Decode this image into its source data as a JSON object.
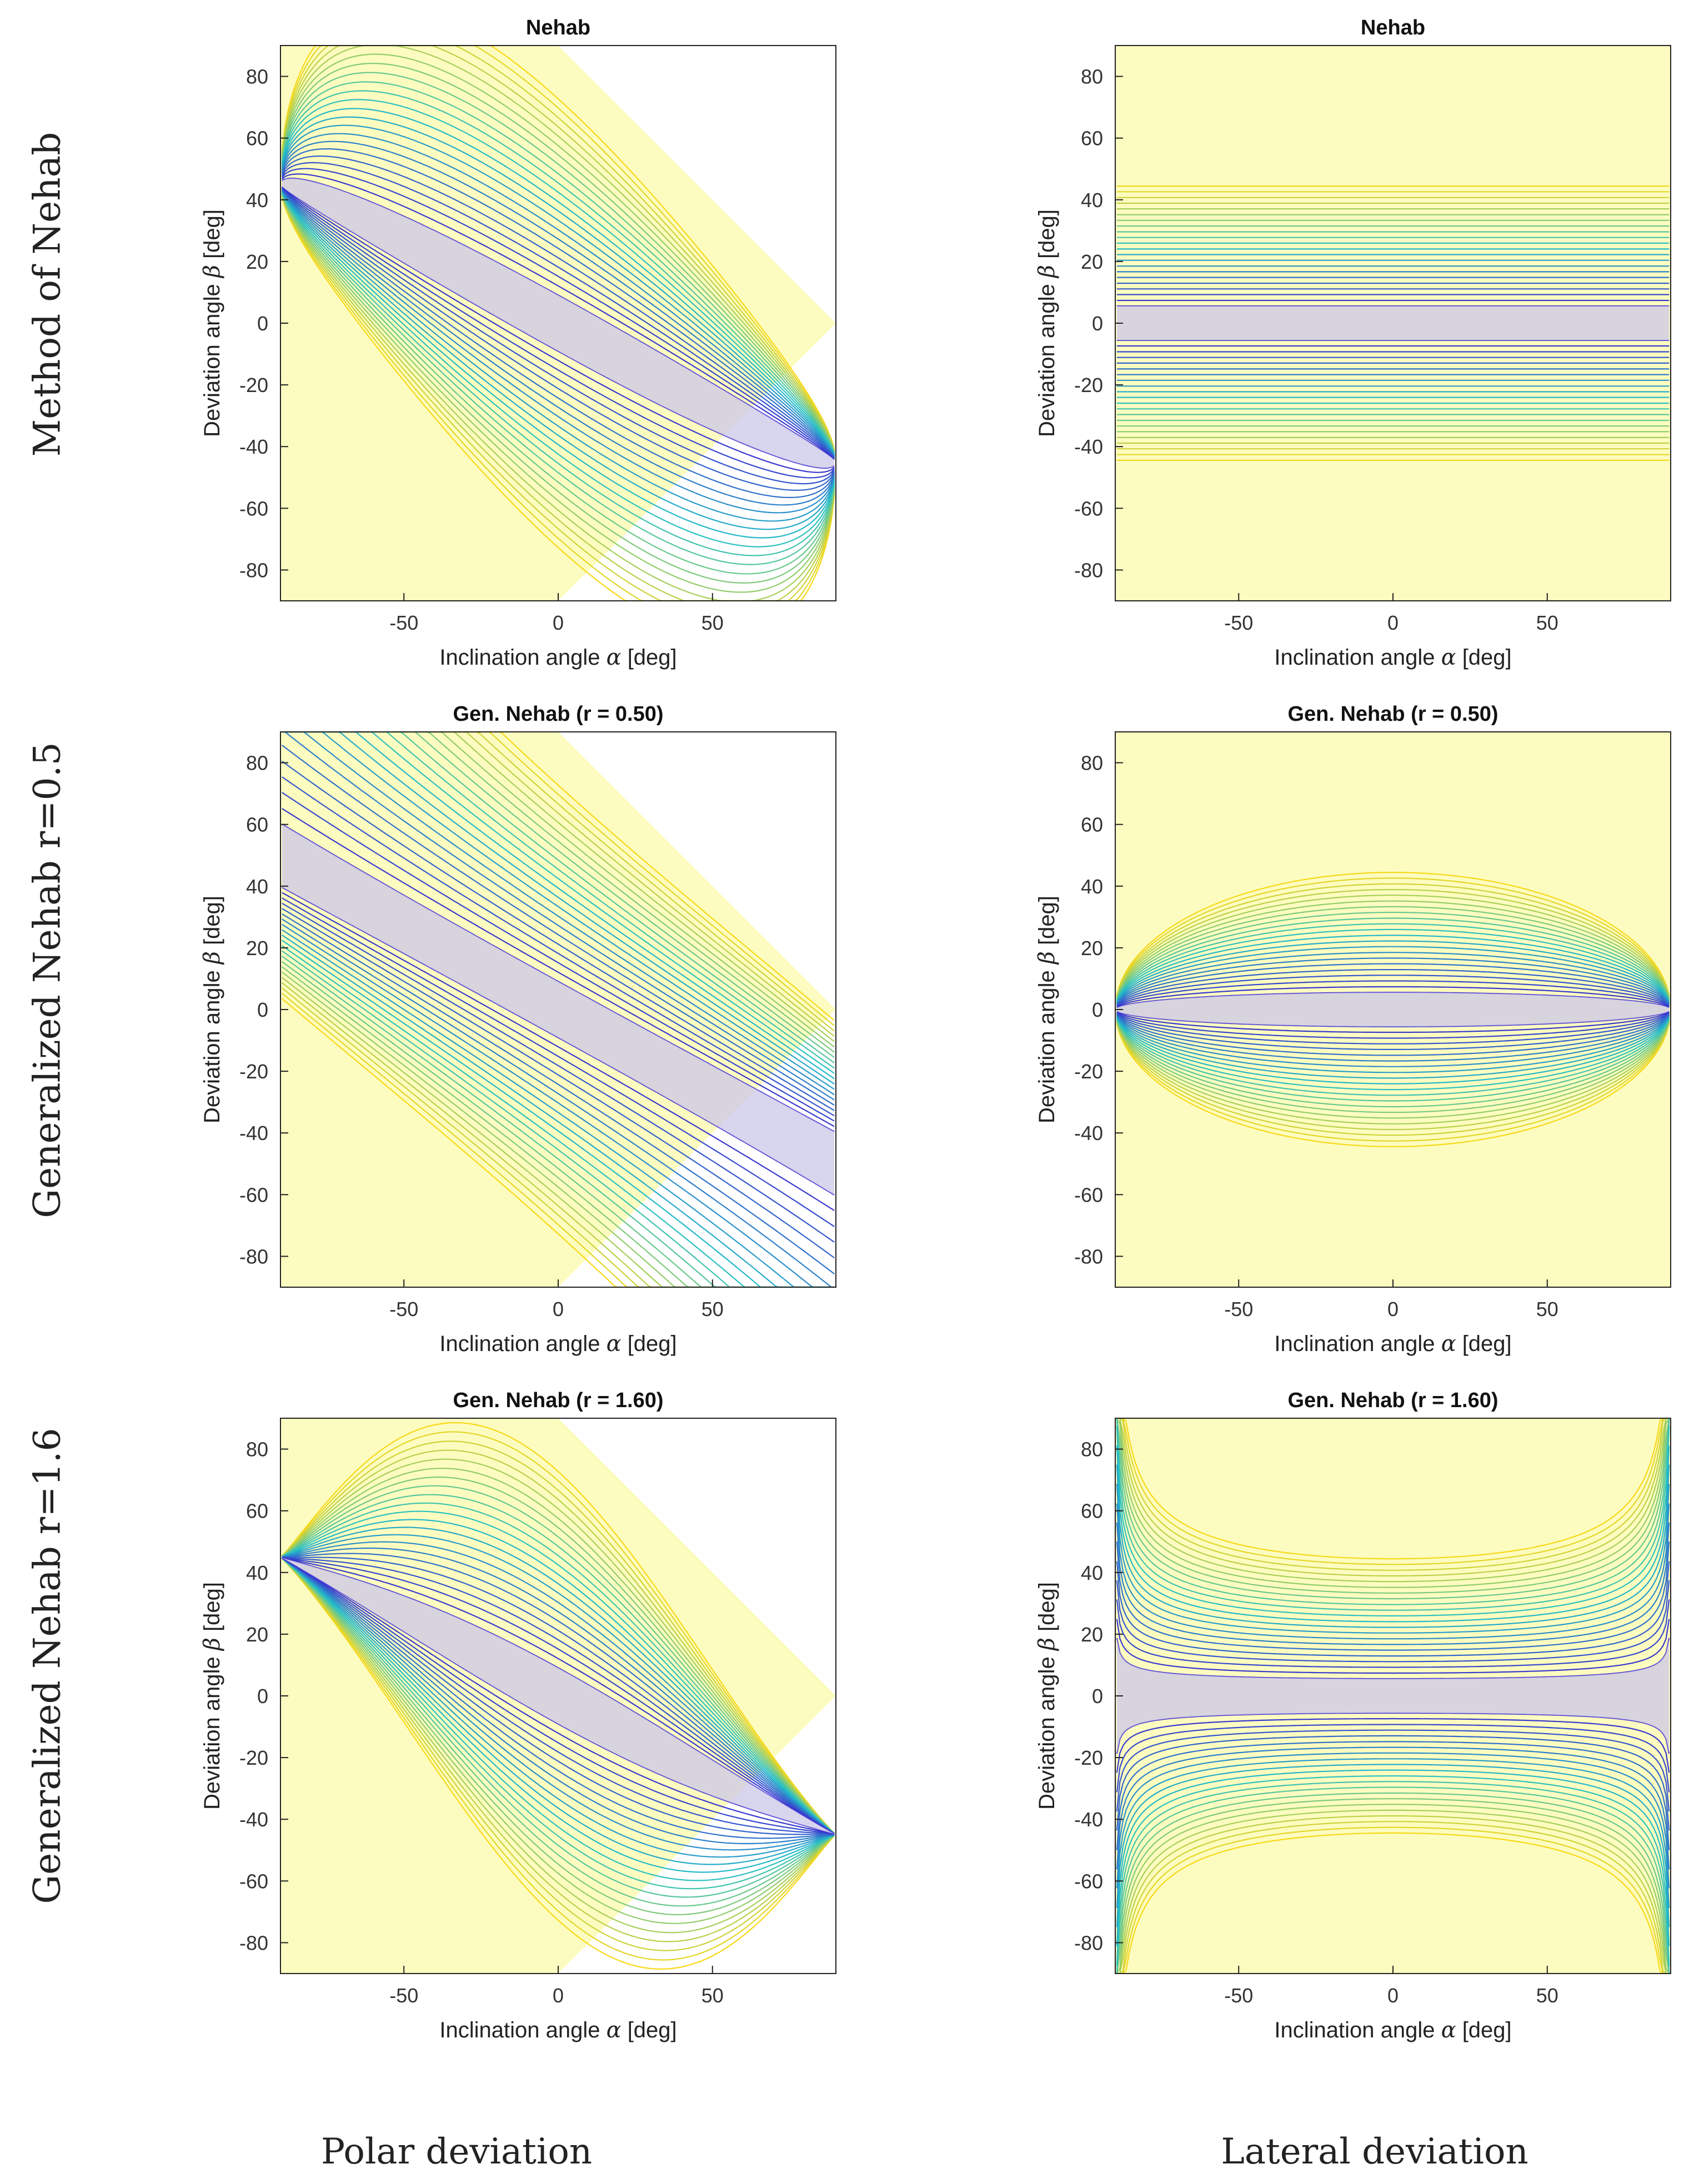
{
  "row_labels": [
    "Method of Nehab",
    "Generalized Nehab r=0.5",
    "Generalized Nehab r=1.6"
  ],
  "column_labels": [
    "Polar deviation",
    "Lateral deviation"
  ],
  "colors": {
    "background_fill": "#fdfcc0",
    "region_fill": "#cbc7e8",
    "contour_low": "#3b2bd0",
    "contour_mid": "#23c0c8",
    "contour_high": "#f8d818",
    "axis": "#222222"
  },
  "chart_data": [
    {
      "type": "contour",
      "panel": "polar-nehab",
      "title": "Nehab",
      "xlabel": {
        "prefix": "Inclination angle",
        "symbol": "α",
        "unit": "[deg]"
      },
      "ylabel": {
        "prefix": "Deviation angle",
        "symbol": "β",
        "unit": "[deg]"
      },
      "xlim": [
        -90,
        90
      ],
      "ylim": [
        -90,
        90
      ],
      "xticks": [
        -50,
        0,
        50
      ],
      "yticks": [
        80,
        60,
        40,
        20,
        0,
        -20,
        -40,
        -60,
        -80
      ],
      "method": "nehab",
      "mode": "polar",
      "r": 1.0,
      "contour_levels": [
        10,
        13.3,
        16.7,
        20,
        23.3,
        26.7,
        30,
        33.3,
        36.7,
        40,
        43.3,
        46.7,
        50,
        53.3,
        56.7,
        60,
        63.3,
        66.7,
        70,
        73.3,
        76.7,
        80
      ]
    },
    {
      "type": "contour",
      "panel": "lateral-nehab",
      "title": "Nehab",
      "xlabel": {
        "prefix": "Inclination angle",
        "symbol": "α",
        "unit": "[deg]"
      },
      "ylabel": {
        "prefix": "Deviation angle",
        "symbol": "β",
        "unit": "[deg]"
      },
      "xlim": [
        -90,
        90
      ],
      "ylim": [
        -90,
        90
      ],
      "xticks": [
        -50,
        0,
        50
      ],
      "yticks": [
        80,
        60,
        40,
        20,
        0,
        -20,
        -40,
        -60,
        -80
      ],
      "method": "nehab",
      "mode": "lateral",
      "r": 1.0,
      "contour_levels": [
        10,
        13.3,
        16.7,
        20,
        23.3,
        26.7,
        30,
        33.3,
        36.7,
        40,
        43.3,
        46.7,
        50,
        53.3,
        56.7,
        60,
        63.3,
        66.7,
        70,
        73.3,
        76.7,
        80
      ]
    },
    {
      "type": "contour",
      "panel": "polar-r050",
      "title": "Gen. Nehab (r = 0.50)",
      "xlabel": {
        "prefix": "Inclination angle",
        "symbol": "α",
        "unit": "[deg]"
      },
      "ylabel": {
        "prefix": "Deviation angle",
        "symbol": "β",
        "unit": "[deg]"
      },
      "xlim": [
        -90,
        90
      ],
      "ylim": [
        -90,
        90
      ],
      "xticks": [
        -50,
        0,
        50
      ],
      "yticks": [
        80,
        60,
        40,
        20,
        0,
        -20,
        -40,
        -60,
        -80
      ],
      "method": "generalized",
      "mode": "polar",
      "r": 0.5,
      "contour_levels": [
        10,
        13.3,
        16.7,
        20,
        23.3,
        26.7,
        30,
        33.3,
        36.7,
        40,
        43.3,
        46.7,
        50,
        53.3,
        56.7,
        60,
        63.3,
        66.7,
        70,
        73.3,
        76.7,
        80
      ]
    },
    {
      "type": "contour",
      "panel": "lateral-r050",
      "title": "Gen. Nehab (r = 0.50)",
      "xlabel": {
        "prefix": "Inclination angle",
        "symbol": "α",
        "unit": "[deg]"
      },
      "ylabel": {
        "prefix": "Deviation angle",
        "symbol": "β",
        "unit": "[deg]"
      },
      "xlim": [
        -90,
        90
      ],
      "ylim": [
        -90,
        90
      ],
      "xticks": [
        -50,
        0,
        50
      ],
      "yticks": [
        80,
        60,
        40,
        20,
        0,
        -20,
        -40,
        -60,
        -80
      ],
      "method": "generalized",
      "mode": "lateral",
      "r": 0.5,
      "contour_levels": [
        10,
        13.3,
        16.7,
        20,
        23.3,
        26.7,
        30,
        33.3,
        36.7,
        40,
        43.3,
        46.7,
        50,
        53.3,
        56.7,
        60,
        63.3,
        66.7,
        70,
        73.3,
        76.7,
        80
      ]
    },
    {
      "type": "contour",
      "panel": "polar-r160",
      "title": "Gen. Nehab (r = 1.60)",
      "xlabel": {
        "prefix": "Inclination angle",
        "symbol": "α",
        "unit": "[deg]"
      },
      "ylabel": {
        "prefix": "Deviation angle",
        "symbol": "β",
        "unit": "[deg]"
      },
      "xlim": [
        -90,
        90
      ],
      "ylim": [
        -90,
        90
      ],
      "xticks": [
        -50,
        0,
        50
      ],
      "yticks": [
        80,
        60,
        40,
        20,
        0,
        -20,
        -40,
        -60,
        -80
      ],
      "method": "generalized",
      "mode": "polar",
      "r": 1.6,
      "contour_levels": [
        10,
        13.3,
        16.7,
        20,
        23.3,
        26.7,
        30,
        33.3,
        36.7,
        40,
        43.3,
        46.7,
        50,
        53.3,
        56.7,
        60,
        63.3,
        66.7,
        70,
        73.3,
        76.7,
        80
      ]
    },
    {
      "type": "contour",
      "panel": "lateral-r160",
      "title": "Gen. Nehab (r = 1.60)",
      "xlabel": {
        "prefix": "Inclination angle",
        "symbol": "α",
        "unit": "[deg]"
      },
      "ylabel": {
        "prefix": "Deviation angle",
        "symbol": "β",
        "unit": "[deg]"
      },
      "xlim": [
        -90,
        90
      ],
      "ylim": [
        -90,
        90
      ],
      "xticks": [
        -50,
        0,
        50
      ],
      "yticks": [
        80,
        60,
        40,
        20,
        0,
        -20,
        -40,
        -60,
        -80
      ],
      "method": "generalized",
      "mode": "lateral",
      "r": 1.6,
      "contour_levels": [
        10,
        13.3,
        16.7,
        20,
        23.3,
        26.7,
        30,
        33.3,
        36.7,
        40,
        43.3,
        46.7,
        50,
        53.3,
        56.7,
        60,
        63.3,
        66.7,
        70,
        73.3,
        76.7,
        80
      ]
    }
  ]
}
